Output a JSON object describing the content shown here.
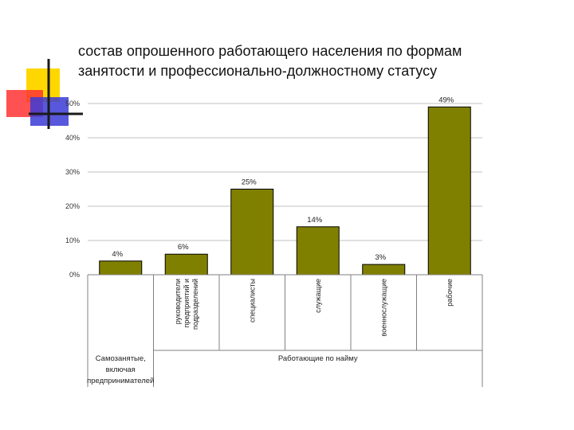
{
  "slide": {
    "title_line1": "состав опрошенного работающего населения по формам",
    "title_line2": "занятости и профессионально-должностному статусу"
  },
  "chart_data": {
    "type": "bar",
    "categories": [
      "",
      "руководители предприятий и подразделений",
      "специалисты",
      "служащие",
      "военнослужащие",
      "рабочие"
    ],
    "category_lines": [
      [],
      [
        "руководители",
        "предприятий и",
        "подразделений"
      ],
      [
        "специалисты"
      ],
      [
        "служащие"
      ],
      [
        "военнослужащие"
      ],
      [
        "рабочие"
      ]
    ],
    "values": [
      4,
      6,
      25,
      14,
      3,
      49
    ],
    "data_labels": [
      "4%",
      "6%",
      "25%",
      "14%",
      "3%",
      "49%"
    ],
    "groups": [
      {
        "label_lines": [
          "Самозанятые,",
          "включая",
          "предпринимателей"
        ],
        "categories": [
          0
        ]
      },
      {
        "label_lines": [
          "Работающие по найму"
        ],
        "categories": [
          1,
          2,
          3,
          4,
          5
        ]
      }
    ],
    "yticks": [
      "0%",
      "10%",
      "20%",
      "30%",
      "40%",
      "50%"
    ],
    "ylim": [
      0,
      50
    ],
    "grid": true,
    "legend": "none",
    "colors": {
      "bar": "#808000",
      "bar_edge": "#000000",
      "grid": "#c0c0c0",
      "axis": "#808080"
    }
  },
  "decor": {
    "yellow": "#ffd700",
    "red": "#ff3333",
    "blue": "#3b3bd6",
    "line": "#1a1a1a"
  }
}
